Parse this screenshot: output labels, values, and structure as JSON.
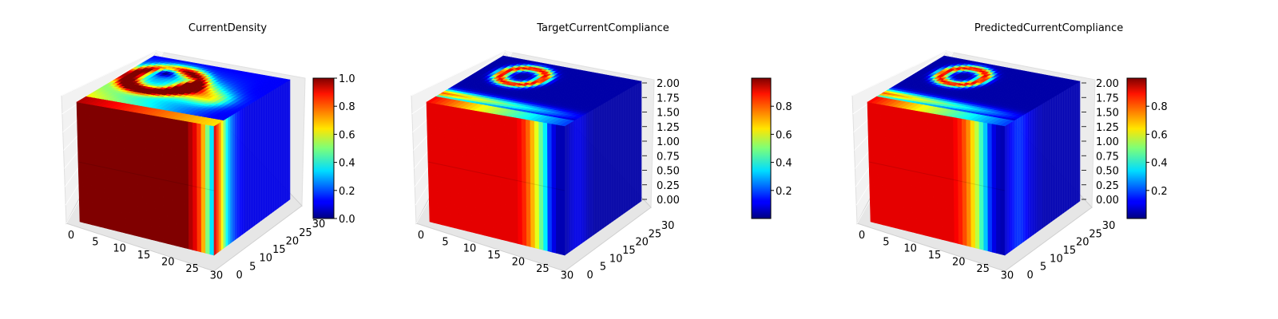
{
  "chart_data": [
    {
      "type": "heatmap",
      "subtype": "3d-voxel",
      "title": "CurrentDensity",
      "x_ticks": [
        "0",
        "5",
        "10",
        "15",
        "20",
        "25",
        "30"
      ],
      "y_ticks": [
        "0",
        "5",
        "10",
        "15",
        "20",
        "25",
        "30"
      ],
      "z_ticks": [],
      "xlim": [
        0,
        32
      ],
      "ylim": [
        0,
        32
      ],
      "zlim": [
        0,
        2
      ],
      "colormap": "jet",
      "colorbar": {
        "vmin": 0,
        "vmax": 1,
        "ticks": [
          "0.0",
          "0.2",
          "0.4",
          "0.6",
          "0.8",
          "1.0"
        ]
      },
      "top_pattern": "two-branch",
      "front_profile": [
        1,
        1,
        1,
        1,
        1,
        1,
        1,
        1,
        1,
        1,
        1,
        1,
        1,
        1,
        1,
        1,
        1,
        1,
        1,
        1,
        1,
        1,
        1,
        1,
        1,
        1,
        0.95,
        0.9,
        0.82,
        0.7,
        0.5,
        0.35
      ],
      "side_profile": [
        0.9,
        0.82,
        0.74,
        0.62,
        0.5,
        0.38,
        0.3,
        0.24,
        0.2,
        0.16,
        0.14,
        0.12,
        0.11,
        0.1,
        0.1,
        0.1,
        0.1,
        0.1,
        0.1,
        0.1,
        0.1,
        0.1,
        0.1,
        0.1,
        0.1,
        0.1,
        0.1,
        0.1,
        0.1,
        0.1,
        0.1,
        0.1
      ],
      "grid": true
    },
    {
      "type": "heatmap",
      "subtype": "3d-voxel",
      "title": "TargetCurrentCompliance",
      "x_ticks": [
        "0",
        "5",
        "10",
        "15",
        "20",
        "25",
        "30"
      ],
      "y_ticks": [
        "0",
        "5",
        "10",
        "15",
        "20",
        "25",
        "30"
      ],
      "z_ticks": [
        "0.00",
        "0.25",
        "0.50",
        "0.75",
        "1.00",
        "1.25",
        "1.50",
        "1.75",
        "2.00"
      ],
      "xlim": [
        0,
        32
      ],
      "ylim": [
        0,
        32
      ],
      "zlim": [
        0,
        2
      ],
      "colormap": "jet",
      "colorbar": {
        "vmin": 0,
        "vmax": 1,
        "ticks": [
          "0.2",
          "0.4",
          "0.6",
          "0.8"
        ]
      },
      "top_pattern": "single-loop",
      "front_profile": [
        0.9,
        0.9,
        0.9,
        0.9,
        0.9,
        0.9,
        0.9,
        0.9,
        0.9,
        0.9,
        0.9,
        0.9,
        0.9,
        0.9,
        0.9,
        0.9,
        0.9,
        0.9,
        0.9,
        0.9,
        0.9,
        0.88,
        0.84,
        0.78,
        0.7,
        0.6,
        0.48,
        0.36,
        0.18,
        0.1,
        0.05,
        0.05
      ],
      "side_profile": [
        0.05,
        0.06,
        0.08,
        0.09,
        0.1,
        0.1,
        0.1,
        0.09,
        0.08,
        0.06,
        0.05,
        0.05,
        0.04,
        0.04,
        0.04,
        0.04,
        0.04,
        0.04,
        0.04,
        0.04,
        0.04,
        0.04,
        0.04,
        0.04,
        0.04,
        0.04,
        0.04,
        0.04,
        0.04,
        0.04,
        0.04,
        0.04
      ],
      "grid": true
    },
    {
      "type": "heatmap",
      "subtype": "3d-voxel",
      "title": "PredictedCurrentCompliance",
      "x_ticks": [
        "0",
        "5",
        "10",
        "15",
        "20",
        "25",
        "30"
      ],
      "y_ticks": [
        "0",
        "5",
        "10",
        "15",
        "20",
        "25",
        "30"
      ],
      "z_ticks": [
        "0.00",
        "0.25",
        "0.50",
        "0.75",
        "1.00",
        "1.25",
        "1.50",
        "1.75",
        "2.00"
      ],
      "xlim": [
        0,
        32
      ],
      "ylim": [
        0,
        32
      ],
      "zlim": [
        0,
        2
      ],
      "colormap": "jet",
      "colorbar": {
        "vmin": 0,
        "vmax": 1,
        "ticks": [
          "0.2",
          "0.4",
          "0.6",
          "0.8"
        ]
      },
      "top_pattern": "single-loop",
      "front_profile": [
        0.9,
        0.9,
        0.9,
        0.9,
        0.9,
        0.9,
        0.9,
        0.9,
        0.9,
        0.9,
        0.9,
        0.9,
        0.9,
        0.9,
        0.9,
        0.9,
        0.9,
        0.9,
        0.9,
        0.9,
        0.88,
        0.85,
        0.8,
        0.74,
        0.66,
        0.56,
        0.44,
        0.32,
        0.18,
        0.1,
        0.06,
        0.05
      ],
      "side_profile": [
        0.08,
        0.1,
        0.12,
        0.14,
        0.16,
        0.17,
        0.17,
        0.16,
        0.14,
        0.12,
        0.1,
        0.09,
        0.08,
        0.07,
        0.06,
        0.06,
        0.05,
        0.05,
        0.05,
        0.05,
        0.05,
        0.05,
        0.05,
        0.05,
        0.05,
        0.05,
        0.05,
        0.05,
        0.05,
        0.05,
        0.05,
        0.05
      ],
      "grid": true
    }
  ]
}
